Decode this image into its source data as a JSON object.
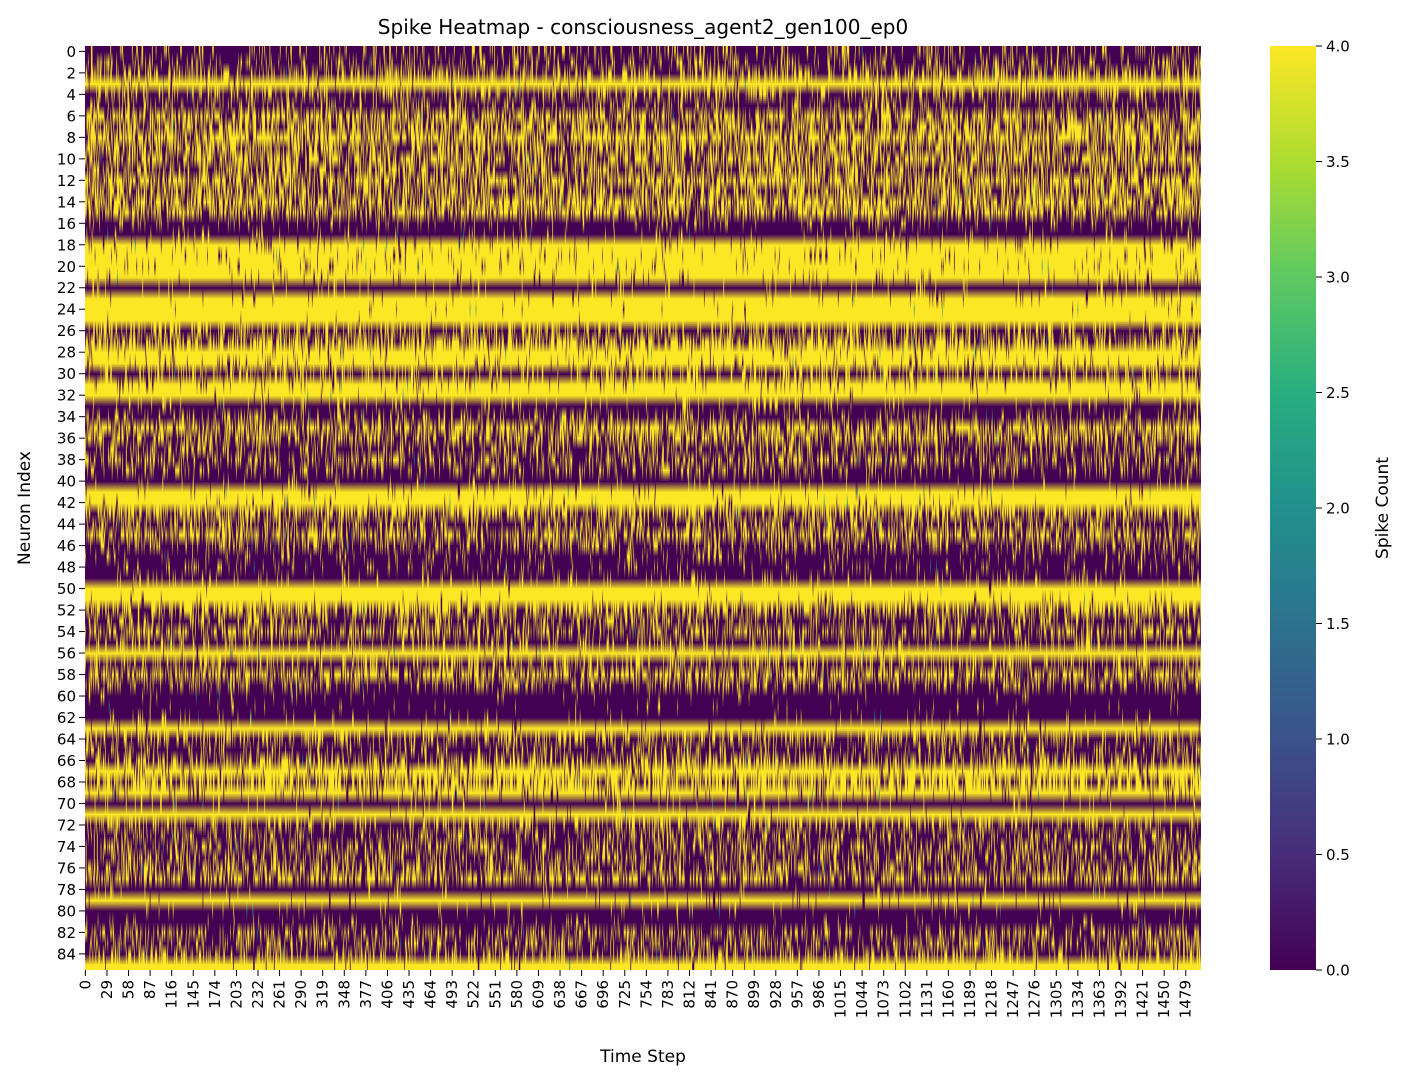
{
  "chart_data": {
    "type": "heatmap",
    "title": "Spike Heatmap - consciousness_agent2_gen100_ep0",
    "xlabel": "Time Step",
    "ylabel": "Neuron Index",
    "colorbar_label": "Spike Count",
    "colormap": "viridis",
    "value_range": [
      0.0,
      4.0
    ],
    "n_rows": 86,
    "n_cols": 1500,
    "y_tick_labels": [
      "0",
      "2",
      "4",
      "6",
      "8",
      "10",
      "12",
      "14",
      "16",
      "18",
      "20",
      "22",
      "24",
      "26",
      "28",
      "30",
      "32",
      "34",
      "36",
      "38",
      "40",
      "42",
      "44",
      "46",
      "48",
      "50",
      "52",
      "54",
      "56",
      "58",
      "60",
      "62",
      "64",
      "66",
      "68",
      "70",
      "72",
      "74",
      "76",
      "78",
      "80",
      "82",
      "84"
    ],
    "x_tick_labels": [
      "0",
      "29",
      "58",
      "87",
      "116",
      "145",
      "174",
      "203",
      "232",
      "261",
      "290",
      "319",
      "348",
      "377",
      "406",
      "435",
      "464",
      "493",
      "522",
      "551",
      "580",
      "609",
      "638",
      "667",
      "696",
      "725",
      "754",
      "783",
      "812",
      "841",
      "870",
      "899",
      "928",
      "957",
      "986",
      "1015",
      "1044",
      "1073",
      "1102",
      "1131",
      "1160",
      "1189",
      "1218",
      "1247",
      "1276",
      "1305",
      "1334",
      "1363",
      "1392",
      "1421",
      "1450",
      "1479"
    ],
    "colorbar_ticks": [
      "0.0",
      "0.5",
      "1.0",
      "1.5",
      "2.0",
      "2.5",
      "3.0",
      "3.5",
      "4.0"
    ],
    "row_spike_probability": [
      0.15,
      0.2,
      0.35,
      0.97,
      0.3,
      0.2,
      0.55,
      0.5,
      0.7,
      0.45,
      0.55,
      0.4,
      0.6,
      0.45,
      0.6,
      0.55,
      0.1,
      0.05,
      0.93,
      0.94,
      0.95,
      0.95,
      0.05,
      0.97,
      0.99,
      0.99,
      0.3,
      0.55,
      0.95,
      0.9,
      0.25,
      0.93,
      0.98,
      0.1,
      0.2,
      0.6,
      0.45,
      0.25,
      0.35,
      0.2,
      0.05,
      0.97,
      0.96,
      0.5,
      0.3,
      0.55,
      0.25,
      0.1,
      0.1,
      0.1,
      0.99,
      0.97,
      0.5,
      0.25,
      0.4,
      0.2,
      0.98,
      0.3,
      0.55,
      0.25,
      0.03,
      0.03,
      0.04,
      0.97,
      0.3,
      0.2,
      0.4,
      0.9,
      0.6,
      0.9,
      0.05,
      0.98,
      0.3,
      0.25,
      0.3,
      0.3,
      0.35,
      0.5,
      0.04,
      0.97,
      0.04,
      0.05,
      0.3,
      0.3,
      0.3,
      0.97
    ],
    "colors": {
      "low": "#440154",
      "high": "#fde725"
    }
  }
}
